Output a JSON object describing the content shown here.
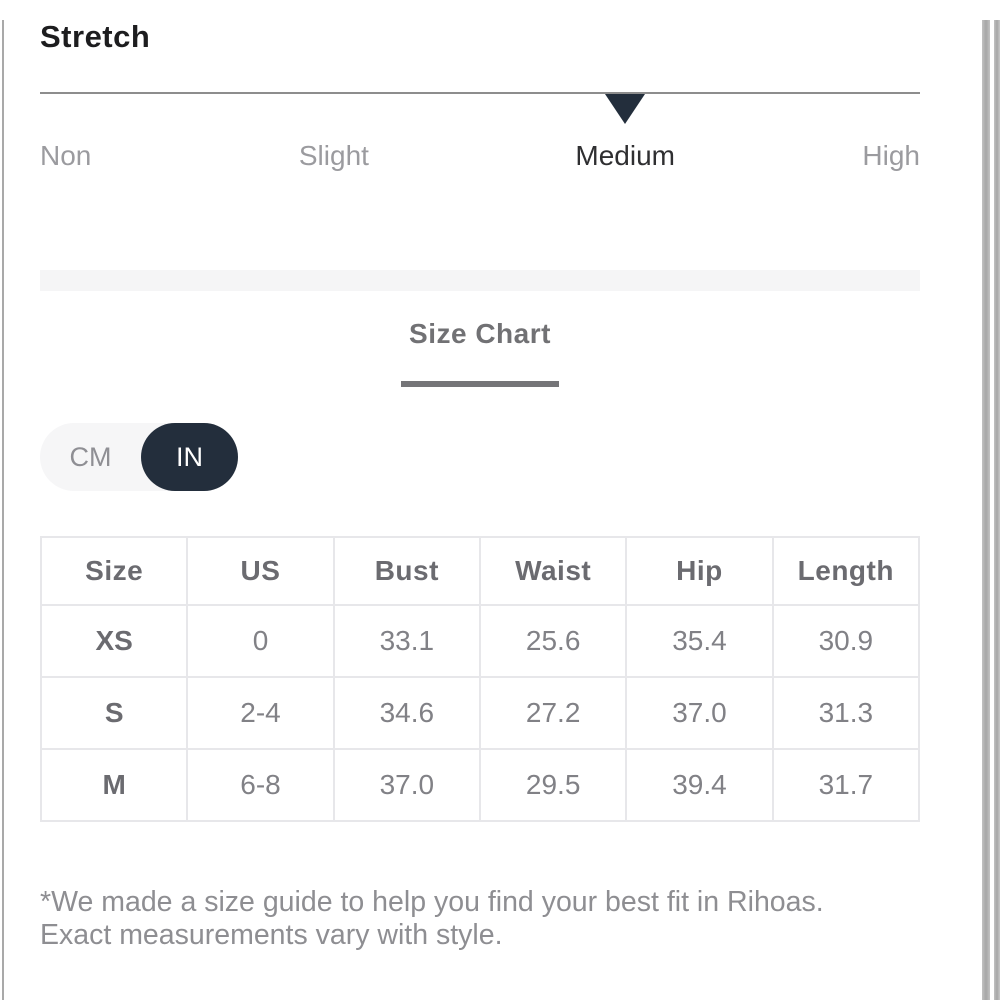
{
  "stretch": {
    "title": "Stretch",
    "levels": [
      {
        "label": "Non",
        "selected": false
      },
      {
        "label": "Slight",
        "selected": false
      },
      {
        "label": "Medium",
        "selected": true
      },
      {
        "label": "High",
        "selected": false
      }
    ],
    "selected_level": "Medium"
  },
  "size_chart": {
    "title": "Size Chart"
  },
  "unit_toggle": {
    "options": [
      "CM",
      "IN"
    ],
    "selected": "IN"
  },
  "table": {
    "headers": [
      "Size",
      "US",
      "Bust",
      "Waist",
      "Hip",
      "Length"
    ],
    "rows": [
      [
        "XS",
        "0",
        "33.1",
        "25.6",
        "35.4",
        "30.9"
      ],
      [
        "S",
        "2-4",
        "34.6",
        "27.2",
        "37.0",
        "31.3"
      ],
      [
        "M",
        "6-8",
        "37.0",
        "29.5",
        "39.4",
        "31.7"
      ]
    ]
  },
  "footnote": {
    "line1": "*We made a size guide to help you find your best fit in Rihoas.",
    "line2": "Exact measurements vary with style."
  },
  "colors": {
    "accent_dark": "#232e3c",
    "muted_text": "#9b9b9f",
    "table_border": "#e7e7ea",
    "divider_band": "#f5f5f6"
  }
}
